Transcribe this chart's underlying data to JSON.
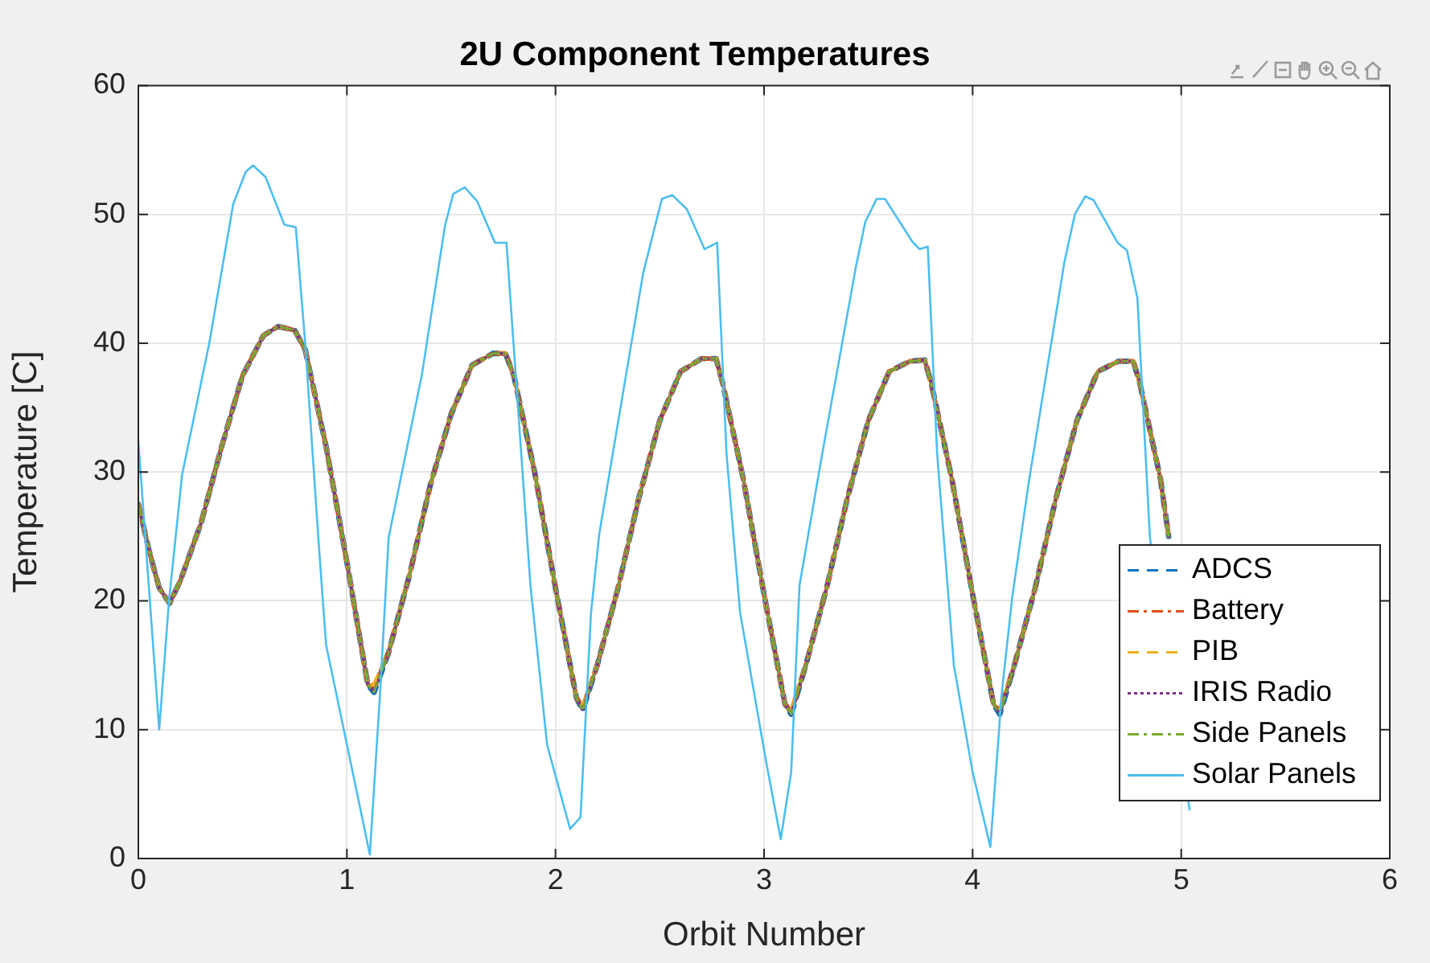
{
  "chart_data": {
    "type": "line",
    "title": "2U Component Temperatures",
    "xlabel": "Orbit Number",
    "ylabel": "Temperature [C]",
    "xlim": [
      0,
      6
    ],
    "xticks": [
      0,
      1,
      2,
      3,
      4,
      5,
      6
    ],
    "ylim": [
      0,
      60
    ],
    "yticks": [
      0,
      10,
      20,
      30,
      40,
      50,
      60
    ],
    "grid": true,
    "legend": "bottom right",
    "marker": "none",
    "x": [
      0,
      0.05,
      0.1,
      0.15,
      0.2,
      0.3,
      0.4,
      0.5,
      0.6,
      0.67,
      0.75,
      0.8,
      0.9,
      1.0,
      1.1,
      1.13,
      1.2,
      1.3,
      1.4,
      1.5,
      1.6,
      1.7,
      1.76,
      1.8,
      1.9,
      2.0,
      2.1,
      2.13,
      2.2,
      2.3,
      2.4,
      2.5,
      2.6,
      2.7,
      2.77,
      2.8,
      2.9,
      3.0,
      3.1,
      3.13,
      3.2,
      3.3,
      3.4,
      3.5,
      3.6,
      3.7,
      3.77,
      3.8,
      3.9,
      4.0,
      4.1,
      4.13,
      4.2,
      4.3,
      4.4,
      4.5,
      4.6,
      4.7,
      4.77,
      4.8,
      4.9,
      4.94
    ],
    "series": [
      {
        "name": "ADCS",
        "color": "#0072bd",
        "line_style": "dashed",
        "values": [
          27.5,
          24,
          21,
          19.8,
          21.5,
          26,
          32,
          37.5,
          40.6,
          41.3,
          41,
          39.5,
          32,
          23,
          13.5,
          12.9,
          16,
          22,
          29,
          34.5,
          38.3,
          39.2,
          39.2,
          37.5,
          30,
          21,
          12.5,
          11.5,
          15,
          21,
          28,
          34,
          37.8,
          38.8,
          38.8,
          37,
          29.5,
          20.5,
          12,
          11.2,
          15,
          21,
          28,
          34,
          37.8,
          38.6,
          38.7,
          37,
          29.5,
          20.5,
          12,
          11.2,
          15,
          21,
          28,
          34,
          37.8,
          38.6,
          38.6,
          37,
          29.5,
          25
        ]
      },
      {
        "name": "Battery",
        "color": "#d95319",
        "line_style": "dashdot",
        "values": [
          27.5,
          24,
          21,
          19.8,
          21.5,
          26,
          32,
          37.5,
          40.6,
          41.3,
          41,
          39.5,
          32,
          23,
          13.5,
          13.3,
          16,
          22,
          29,
          34.5,
          38.3,
          39.2,
          39.2,
          37.5,
          30,
          21,
          12.5,
          11.7,
          15,
          21,
          28,
          34,
          37.8,
          38.8,
          38.8,
          37,
          29.5,
          20.5,
          12,
          11.4,
          15,
          21,
          28,
          34,
          37.8,
          38.6,
          38.7,
          37,
          29.5,
          20.5,
          12,
          11.4,
          15,
          21,
          28,
          34,
          37.8,
          38.6,
          38.6,
          37,
          29.5,
          25
        ]
      },
      {
        "name": "PIB",
        "color": "#edb120",
        "line_style": "dashed",
        "values": [
          27.5,
          24,
          21,
          19.8,
          21.5,
          26,
          32,
          37.5,
          40.6,
          41.3,
          41,
          39.5,
          32,
          23,
          13.5,
          13.5,
          16,
          22,
          29,
          34.5,
          38.3,
          39.2,
          39.2,
          37.5,
          30,
          21,
          12.5,
          11.8,
          15,
          21,
          28,
          34,
          37.8,
          38.8,
          38.8,
          37,
          29.5,
          20.5,
          12,
          11.5,
          15,
          21,
          28,
          34,
          37.8,
          38.6,
          38.7,
          37,
          29.5,
          20.5,
          12,
          11.5,
          15,
          21,
          28,
          34,
          37.8,
          38.6,
          38.6,
          37,
          29.5,
          25
        ]
      },
      {
        "name": "IRIS Radio",
        "color": "#7e2f8e",
        "line_style": "dotted",
        "values": [
          27.5,
          24,
          21,
          19.8,
          21.5,
          26,
          32,
          37.5,
          40.6,
          41.3,
          41,
          39.5,
          32,
          23,
          13.5,
          12.9,
          16,
          22,
          29,
          34.5,
          38.3,
          39.2,
          39.2,
          37.5,
          30,
          21,
          12.5,
          11.5,
          15,
          21,
          28,
          34,
          37.8,
          38.8,
          38.8,
          37,
          29.5,
          20.5,
          12,
          11.2,
          15,
          21,
          28,
          34,
          37.8,
          38.6,
          38.7,
          37,
          29.5,
          20.5,
          12,
          11.2,
          15,
          21,
          28,
          34,
          37.8,
          38.6,
          38.6,
          37,
          29.5,
          25
        ]
      },
      {
        "name": "Side Panels",
        "color": "#77ac30",
        "line_style": "dashdot",
        "values": [
          27.5,
          24,
          21,
          19.8,
          21.5,
          26,
          32,
          37.5,
          40.6,
          41.3,
          41,
          39.5,
          32,
          23,
          13.5,
          12.9,
          16,
          22,
          29,
          34.5,
          38.3,
          39.2,
          39.2,
          37.5,
          30,
          21,
          12.5,
          11.5,
          15,
          21,
          28,
          34,
          37.8,
          38.8,
          38.8,
          37,
          29.5,
          20.5,
          12,
          11.2,
          15,
          21,
          28,
          34,
          37.8,
          38.6,
          38.7,
          37,
          29.5,
          20.5,
          12,
          11.2,
          15,
          21,
          28,
          34,
          37.8,
          38.6,
          38.6,
          37,
          29.5,
          25
        ]
      },
      {
        "name": "Solar Panels",
        "color": "#4dbeee",
        "line_style": "solid",
        "x": [
          0,
          0.1,
          0.147,
          0.21,
          0.34,
          0.455,
          0.515,
          0.55,
          0.61,
          0.7,
          0.755,
          0.8,
          0.865,
          0.9,
          1.11,
          1.16,
          1.2,
          1.36,
          1.47,
          1.51,
          1.565,
          1.625,
          1.71,
          1.765,
          1.8,
          1.88,
          1.96,
          2.07,
          2.12,
          2.17,
          2.21,
          2.42,
          2.51,
          2.56,
          2.63,
          2.715,
          2.775,
          2.82,
          2.885,
          3.01,
          3.08,
          3.13,
          3.17,
          3.27,
          3.44,
          3.485,
          3.54,
          3.58,
          3.71,
          3.745,
          3.785,
          3.83,
          3.91,
          4.0,
          4.085,
          4.14,
          4.19,
          4.27,
          4.44,
          4.49,
          4.54,
          4.58,
          4.695,
          4.74,
          4.79,
          4.85,
          5.04
        ],
        "values": [
          32.4,
          10,
          20,
          29.8,
          40,
          50.8,
          53.3,
          53.8,
          52.9,
          49.2,
          49,
          40,
          24.4,
          16.6,
          0.3,
          13.1,
          24.9,
          37.6,
          49.1,
          51.6,
          52.1,
          51,
          47.8,
          47.8,
          39.7,
          21.2,
          8.8,
          2.3,
          3.2,
          19,
          25.2,
          45.4,
          51.2,
          51.5,
          50.4,
          47.3,
          47.8,
          31.4,
          19.1,
          7.5,
          1.5,
          6.7,
          21.2,
          30.6,
          45.9,
          49.4,
          51.2,
          51.2,
          47.9,
          47.3,
          47.5,
          31.4,
          15,
          6.7,
          0.9,
          12.9,
          20.3,
          29.3,
          46.3,
          50,
          51.4,
          51.1,
          47.8,
          47.2,
          43.5,
          24.9,
          3.8
        ]
      }
    ]
  }
}
